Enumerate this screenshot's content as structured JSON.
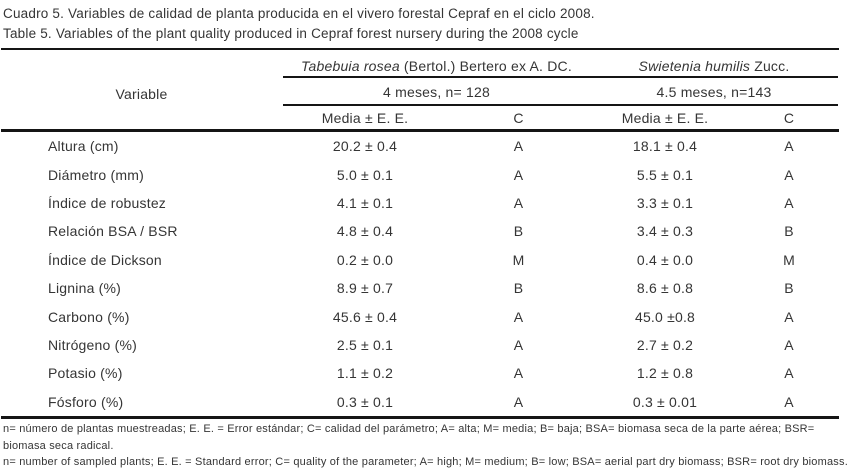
{
  "caption": {
    "line1_es": "Cuadro 5. Variables de calidad de planta producida en el vivero forestal Cepraf en el ciclo 2008.",
    "line2_en": "Table 5. Variables of the plant quality produced in Cepraf forest nursery during the 2008 cycle"
  },
  "table": {
    "variable_header": "Variable",
    "groups": [
      {
        "species_italic": "Tabebuia rosea",
        "species_rest": " (Bertol.) Bertero ex A. DC.",
        "sample": "4 meses, n= 128",
        "media_header": "Media ± E. E.",
        "c_header": "C"
      },
      {
        "species_italic": "Swietenia humilis",
        "species_rest": " Zucc.",
        "sample": "4.5 meses, n=143",
        "media_header": "Media ± E. E.",
        "c_header": "C"
      }
    ],
    "rows": [
      {
        "variable": "Altura (cm)",
        "t_media": "20.2 ± 0.4",
        "t_c": "A",
        "s_media": "18.1 ± 0.4",
        "s_c": "A"
      },
      {
        "variable": "Diámetro (mm)",
        "t_media": "5.0 ± 0.1",
        "t_c": "A",
        "s_media": "5.5 ± 0.1",
        "s_c": "A"
      },
      {
        "variable": "Índice de robustez",
        "t_media": "4.1 ± 0.1",
        "t_c": "A",
        "s_media": "3.3 ± 0.1",
        "s_c": "A"
      },
      {
        "variable": "Relación BSA / BSR",
        "t_media": "4.8 ± 0.4",
        "t_c": "B",
        "s_media": "3.4 ± 0.3",
        "s_c": "B"
      },
      {
        "variable": "Índice de Dickson",
        "t_media": "0.2 ± 0.0",
        "t_c": "M",
        "s_media": "0.4 ± 0.0",
        "s_c": "M"
      },
      {
        "variable": "Lignina (%)",
        "t_media": "8.9 ± 0.7",
        "t_c": "B",
        "s_media": "8.6 ± 0.8",
        "s_c": "B"
      },
      {
        "variable": "Carbono (%)",
        "t_media": "45.6 ± 0.4",
        "t_c": "A",
        "s_media": "45.0 ±0.8",
        "s_c": "A"
      },
      {
        "variable": "Nitrógeno (%)",
        "t_media": "2.5 ± 0.1",
        "t_c": "A",
        "s_media": "2.7 ± 0.2",
        "s_c": "A"
      },
      {
        "variable": "Potasio (%)",
        "t_media": "1.1 ± 0.2",
        "t_c": "A",
        "s_media": "1.2 ± 0.8",
        "s_c": "A"
      },
      {
        "variable": "Fósforo (%)",
        "t_media": "0.3 ± 0.1",
        "t_c": "A",
        "s_media": "0.3 ± 0.01",
        "s_c": "A"
      }
    ]
  },
  "footnotes": {
    "es": "n= número de plantas muestreadas; E. E. = Error estándar; C= calidad del parámetro; A= alta; M= media; B= baja; BSA= biomasa seca de la parte aérea; BSR= biomasa seca radical.",
    "en": "n= number of sampled plants; E. E. = Standard error; C= quality of the parameter; A= high; M= medium; B= low; BSA= aerial part dry biomass; BSR= root dry biomass."
  },
  "colors": {
    "text": "#353535",
    "rule": "#151515",
    "background": "#ffffff"
  }
}
